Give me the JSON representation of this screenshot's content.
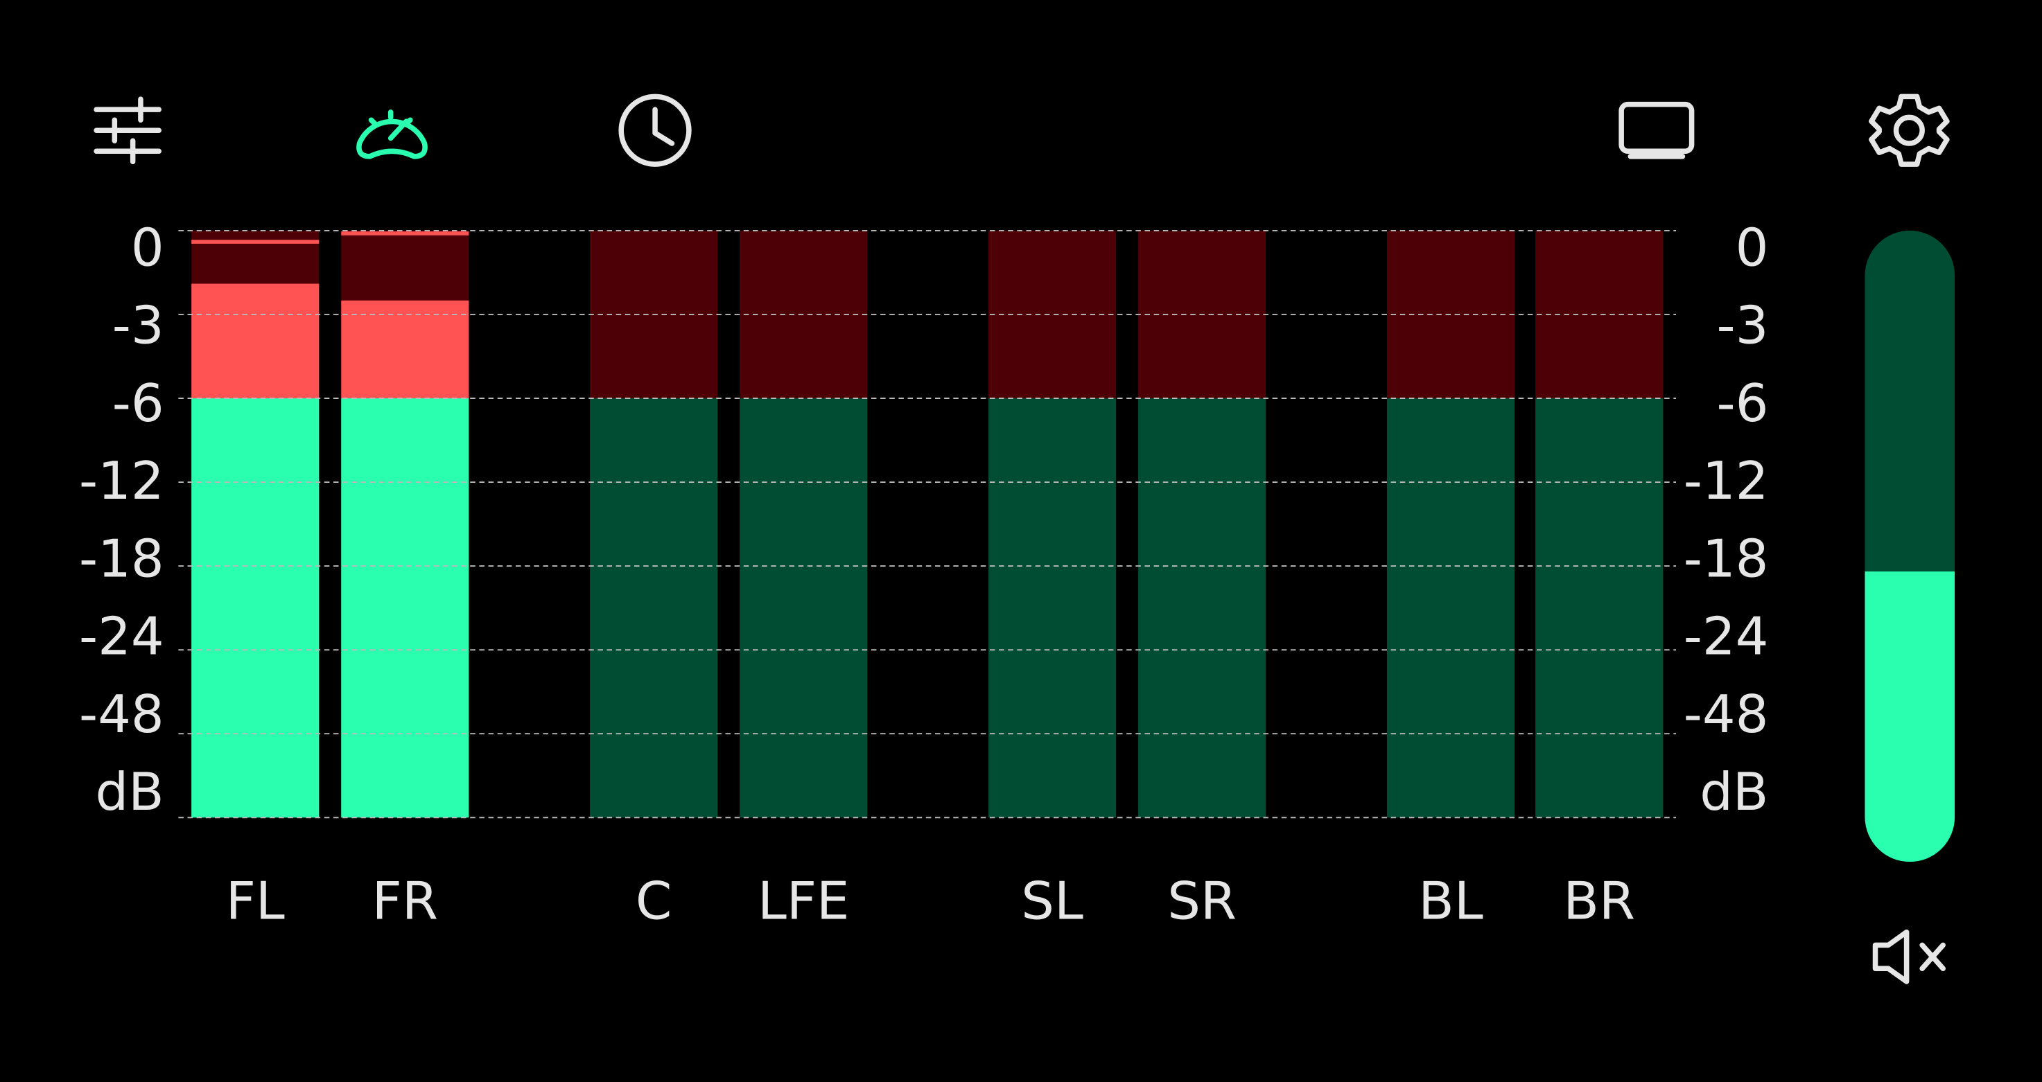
{
  "scale": {
    "ticks": [
      0,
      -3,
      -6,
      -12,
      -18,
      -24,
      -48
    ],
    "unit": "dB"
  },
  "warning_threshold": -6,
  "channels": [
    {
      "label": "FL",
      "level": -1.9,
      "peak": -0.4
    },
    {
      "label": "FR",
      "level": -2.5,
      "peak": -0.1
    },
    {
      "label": "C",
      "level": null,
      "peak": null
    },
    {
      "label": "LFE",
      "level": null,
      "peak": null
    },
    {
      "label": "SL",
      "level": null,
      "peak": null
    },
    {
      "label": "SR",
      "level": null,
      "peak": null
    },
    {
      "label": "BL",
      "level": null,
      "peak": null
    },
    {
      "label": "BR",
      "level": null,
      "peak": null
    }
  ],
  "volume": 46
}
